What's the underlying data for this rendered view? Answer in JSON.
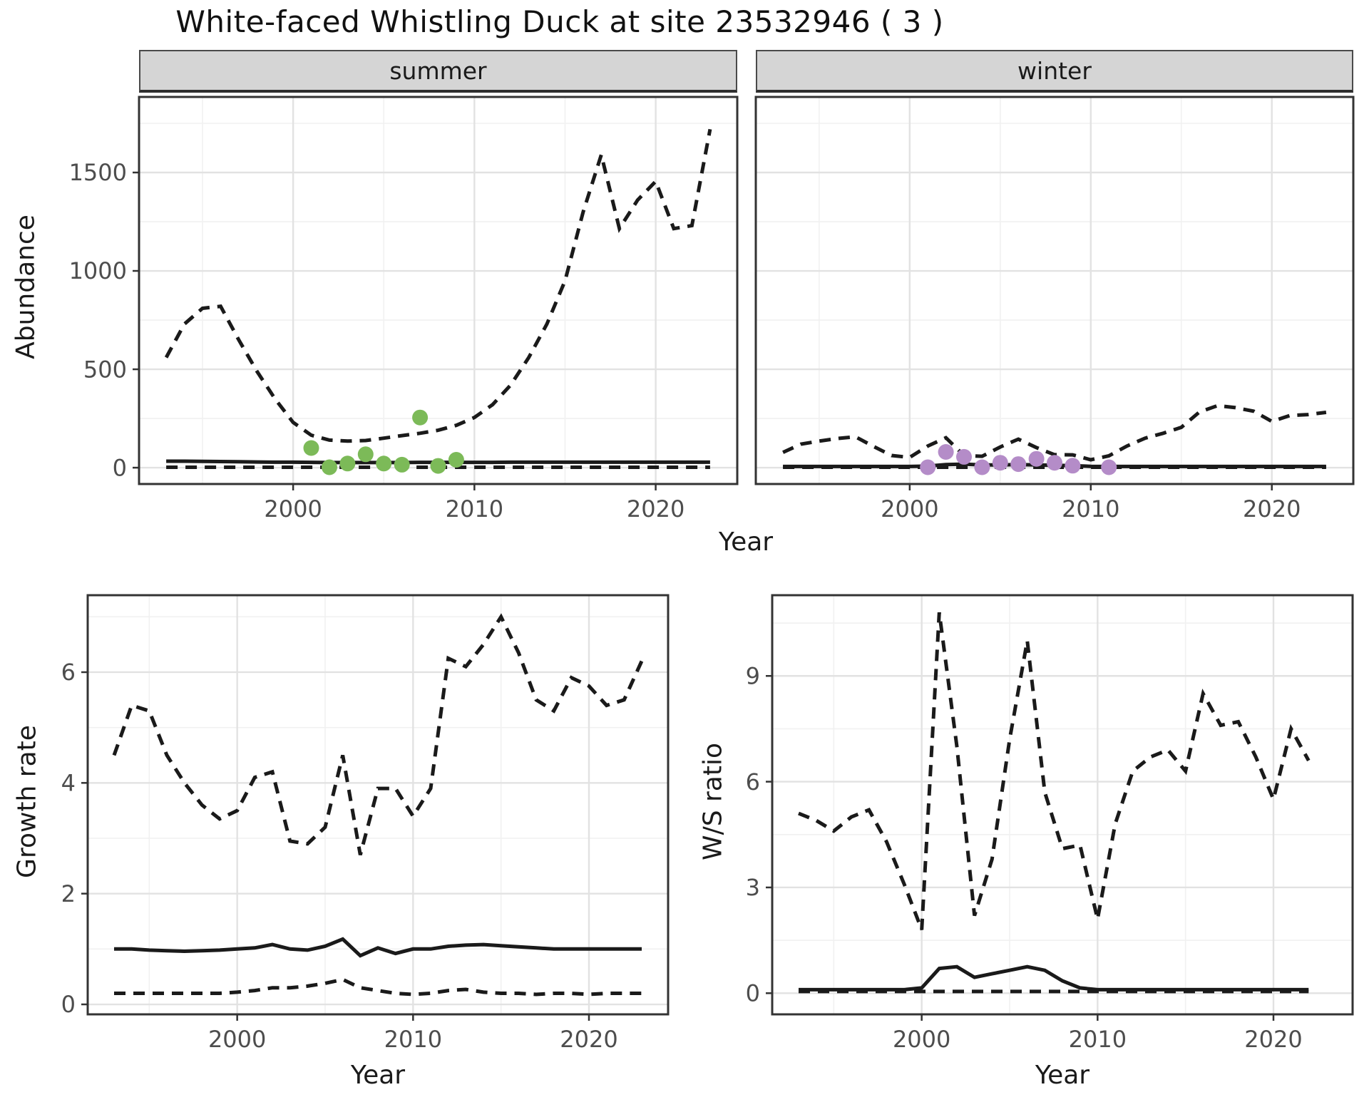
{
  "page": {
    "title": "White-faced Whistling Duck at site 23532946 ( 3 )"
  },
  "facets": {
    "summer": "summer",
    "winter": "winter"
  },
  "axis_titles": {
    "abundance": "Abundance",
    "year_top": "Year",
    "growth": "Growth rate",
    "year_bottom_left": "Year",
    "ws": "W/S ratio",
    "year_bottom_right": "Year"
  },
  "colors": {
    "line": "#1a1a1a",
    "summer_points": "#7cba58",
    "winter_points": "#b48cc8",
    "grid_major": "#e2e2e2",
    "grid_minor": "#f1f1f1",
    "panel_border": "#333333",
    "tick_text": "#4d4d4d",
    "strip_bg": "#d5d5d5"
  },
  "chart_data": [
    {
      "id": "abundance-summer",
      "type": "line",
      "facet": "summer",
      "xlabel": "Year",
      "ylabel": "Abundance",
      "x_domain": [
        1991.5,
        2024.5
      ],
      "y_domain": [
        -83,
        1884
      ],
      "x_ticks": [
        2000,
        2010,
        2020
      ],
      "x_minor": [
        1995,
        2005,
        2015
      ],
      "y_ticks": [
        0,
        500,
        1000,
        1500
      ],
      "y_minor": [
        250,
        750,
        1250,
        1750
      ],
      "years": [
        1993,
        1994,
        1995,
        1996,
        1997,
        1998,
        1999,
        2000,
        2001,
        2002,
        2003,
        2004,
        2005,
        2006,
        2007,
        2008,
        2009,
        2010,
        2011,
        2012,
        2013,
        2014,
        2015,
        2016,
        2017,
        2018,
        2019,
        2020,
        2021,
        2022,
        2023
      ],
      "series": [
        {
          "name": "upper_ci",
          "style": "dashed",
          "values": [
            560,
            730,
            810,
            820,
            650,
            490,
            350,
            230,
            165,
            140,
            135,
            138,
            150,
            163,
            175,
            190,
            215,
            255,
            320,
            420,
            560,
            730,
            950,
            1300,
            1590,
            1215,
            1360,
            1455,
            1215,
            1230,
            1720
          ]
        },
        {
          "name": "median",
          "style": "solid",
          "values": [
            33,
            33,
            32,
            31,
            30,
            29,
            28,
            28,
            27,
            26,
            26,
            26,
            26,
            26,
            27,
            27,
            27,
            27,
            27,
            28,
            28,
            28,
            28,
            28,
            28,
            28,
            28,
            28,
            28,
            28,
            28
          ]
        },
        {
          "name": "lower_ci",
          "style": "dashed",
          "values": [
            2,
            2,
            2,
            2,
            2,
            2,
            2,
            2,
            2,
            2,
            2,
            2,
            2,
            2,
            2,
            2,
            2,
            2,
            2,
            2,
            2,
            2,
            2,
            2,
            2,
            2,
            2,
            2,
            2,
            2,
            2
          ]
        }
      ],
      "points": {
        "name": "summer-observations",
        "color_key": "summer_points",
        "data": [
          [
            2001,
            100
          ],
          [
            2002,
            2
          ],
          [
            2003,
            21
          ],
          [
            2004,
            68
          ],
          [
            2005,
            21
          ],
          [
            2006,
            15
          ],
          [
            2007,
            255
          ],
          [
            2008,
            9
          ],
          [
            2009,
            40
          ]
        ]
      }
    },
    {
      "id": "abundance-winter",
      "type": "line",
      "facet": "winter",
      "xlabel": "Year",
      "ylabel": "Abundance",
      "x_domain": [
        1991.5,
        2024.5
      ],
      "y_domain": [
        -83,
        1884
      ],
      "x_ticks": [
        2000,
        2010,
        2020
      ],
      "x_minor": [
        1995,
        2005,
        2015
      ],
      "y_ticks": [
        0,
        500,
        1000,
        1500
      ],
      "y_minor": [
        250,
        750,
        1250,
        1750
      ],
      "years": [
        1993,
        1994,
        1995,
        1996,
        1997,
        1998,
        1999,
        2000,
        2001,
        2002,
        2003,
        2004,
        2005,
        2006,
        2007,
        2008,
        2009,
        2010,
        2011,
        2012,
        2013,
        2014,
        2015,
        2016,
        2017,
        2018,
        2019,
        2020,
        2021,
        2022,
        2023
      ],
      "series": [
        {
          "name": "upper_ci",
          "style": "dashed",
          "values": [
            78,
            120,
            135,
            148,
            157,
            108,
            62,
            52,
            110,
            152,
            62,
            58,
            105,
            145,
            102,
            66,
            65,
            40,
            60,
            110,
            150,
            175,
            205,
            283,
            315,
            305,
            287,
            235,
            265,
            270,
            281
          ]
        },
        {
          "name": "median",
          "style": "solid",
          "values": [
            6,
            6,
            6,
            6,
            6,
            6,
            6,
            6,
            8,
            16,
            18,
            14,
            14,
            16,
            14,
            12,
            10,
            7,
            6,
            6,
            6,
            6,
            6,
            6,
            6,
            6,
            6,
            6,
            6,
            6,
            6
          ]
        },
        {
          "name": "lower_ci",
          "style": "dashed",
          "values": [
            2,
            2,
            2,
            2,
            2,
            2,
            2,
            2,
            2,
            2,
            2,
            2,
            2,
            2,
            2,
            2,
            2,
            2,
            2,
            2,
            2,
            2,
            2,
            2,
            2,
            2,
            2,
            2,
            2,
            2,
            2
          ]
        }
      ],
      "points": {
        "name": "winter-observations",
        "color_key": "winter_points",
        "data": [
          [
            2001,
            2
          ],
          [
            2002,
            80
          ],
          [
            2003,
            55
          ],
          [
            2004,
            2
          ],
          [
            2005,
            25
          ],
          [
            2006,
            18
          ],
          [
            2007,
            45
          ],
          [
            2008,
            25
          ],
          [
            2009,
            10
          ],
          [
            2011,
            2
          ]
        ]
      }
    },
    {
      "id": "growth-rate",
      "type": "line",
      "facet": null,
      "xlabel": "Year",
      "ylabel": "Growth rate",
      "x_domain": [
        1991.5,
        2024.5
      ],
      "y_domain": [
        -0.18,
        7.39
      ],
      "x_ticks": [
        2000,
        2010,
        2020
      ],
      "x_minor": [
        1995,
        2005,
        2015
      ],
      "y_ticks": [
        0,
        2,
        4,
        6
      ],
      "y_minor": [
        1,
        3,
        5,
        7
      ],
      "years": [
        1993,
        1994,
        1995,
        1996,
        1997,
        1998,
        1999,
        2000,
        2001,
        2002,
        2003,
        2004,
        2005,
        2006,
        2007,
        2008,
        2009,
        2010,
        2011,
        2012,
        2013,
        2014,
        2015,
        2016,
        2017,
        2018,
        2019,
        2020,
        2021,
        2022,
        2023
      ],
      "series": [
        {
          "name": "upper_ci",
          "style": "dashed",
          "values": [
            4.5,
            5.4,
            5.3,
            4.5,
            4.0,
            3.6,
            3.35,
            3.5,
            4.1,
            4.2,
            2.95,
            2.9,
            3.2,
            4.5,
            2.7,
            3.9,
            3.9,
            3.4,
            3.9,
            6.25,
            6.1,
            6.5,
            7.0,
            6.35,
            5.5,
            5.3,
            5.9,
            5.75,
            5.4,
            5.5,
            6.2
          ]
        },
        {
          "name": "median",
          "style": "solid",
          "values": [
            1.0,
            1.0,
            0.98,
            0.97,
            0.96,
            0.97,
            0.98,
            1.0,
            1.02,
            1.08,
            1.0,
            0.98,
            1.05,
            1.18,
            0.88,
            1.02,
            0.92,
            1.0,
            1.0,
            1.05,
            1.07,
            1.08,
            1.06,
            1.04,
            1.02,
            1.0,
            1.0,
            1.0,
            1.0,
            1.0,
            1.0
          ]
        },
        {
          "name": "lower_ci",
          "style": "dashed",
          "values": [
            0.2,
            0.2,
            0.2,
            0.2,
            0.2,
            0.2,
            0.2,
            0.22,
            0.25,
            0.3,
            0.3,
            0.33,
            0.38,
            0.45,
            0.3,
            0.25,
            0.2,
            0.18,
            0.2,
            0.25,
            0.27,
            0.22,
            0.2,
            0.2,
            0.18,
            0.2,
            0.2,
            0.18,
            0.2,
            0.2,
            0.2
          ]
        }
      ],
      "points": null
    },
    {
      "id": "ws-ratio",
      "type": "line",
      "facet": null,
      "xlabel": "Year",
      "ylabel": "W/S ratio",
      "x_domain": [
        1991.5,
        2024.5
      ],
      "y_domain": [
        -0.6,
        11.29
      ],
      "x_ticks": [
        2000,
        2010,
        2020
      ],
      "x_minor": [
        1995,
        2005,
        2015
      ],
      "y_ticks": [
        0,
        3,
        6,
        9
      ],
      "y_minor": [
        1.5,
        4.5,
        7.5,
        10.5
      ],
      "years": [
        1993,
        1994,
        1995,
        1996,
        1997,
        1998,
        1999,
        2000,
        2001,
        2002,
        2003,
        2004,
        2005,
        2006,
        2007,
        2008,
        2009,
        2010,
        2011,
        2012,
        2013,
        2014,
        2015,
        2016,
        2017,
        2018,
        2019,
        2020,
        2021,
        2022
      ],
      "series": [
        {
          "name": "upper_ci",
          "style": "dashed",
          "values": [
            5.1,
            4.9,
            4.6,
            5.0,
            5.2,
            4.3,
            3.1,
            1.8,
            10.8,
            7.0,
            2.2,
            3.8,
            7.2,
            10.0,
            5.7,
            4.1,
            4.2,
            2.1,
            4.8,
            6.3,
            6.7,
            6.9,
            6.3,
            8.5,
            7.6,
            7.7,
            6.7,
            5.5,
            7.5,
            6.6
          ]
        },
        {
          "name": "median",
          "style": "solid",
          "values": [
            0.1,
            0.1,
            0.1,
            0.1,
            0.1,
            0.1,
            0.1,
            0.15,
            0.7,
            0.75,
            0.45,
            0.55,
            0.65,
            0.75,
            0.65,
            0.35,
            0.15,
            0.1,
            0.1,
            0.1,
            0.1,
            0.1,
            0.1,
            0.1,
            0.1,
            0.1,
            0.1,
            0.1,
            0.1,
            0.1
          ]
        },
        {
          "name": "lower_ci",
          "style": "dashed",
          "values": [
            0.05,
            0.05,
            0.05,
            0.05,
            0.05,
            0.05,
            0.05,
            0.05,
            0.05,
            0.05,
            0.05,
            0.05,
            0.05,
            0.05,
            0.05,
            0.05,
            0.05,
            0.05,
            0.05,
            0.05,
            0.05,
            0.05,
            0.05,
            0.05,
            0.05,
            0.05,
            0.05,
            0.05,
            0.05,
            0.05
          ]
        }
      ],
      "points": null
    }
  ]
}
